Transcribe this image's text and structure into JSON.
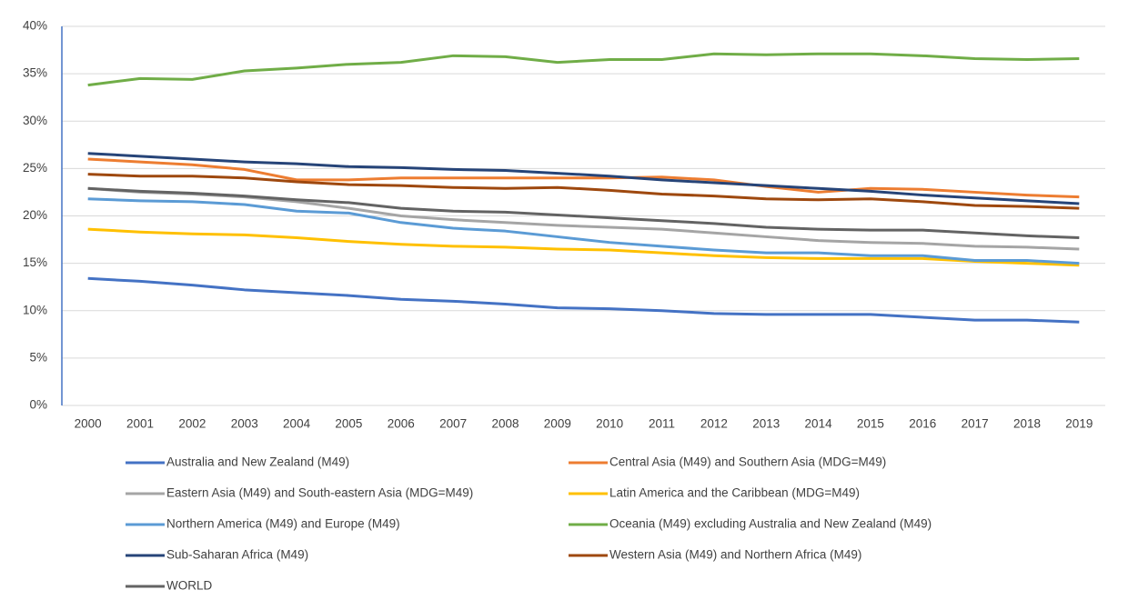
{
  "chart_data": {
    "type": "line",
    "categories": [
      "2000",
      "2001",
      "2002",
      "2003",
      "2004",
      "2005",
      "2006",
      "2007",
      "2008",
      "2009",
      "2010",
      "2011",
      "2012",
      "2013",
      "2014",
      "2015",
      "2016",
      "2017",
      "2018",
      "2019"
    ],
    "ylim": [
      0,
      40
    ],
    "yticks": [
      {
        "value": 0,
        "label": "0%"
      },
      {
        "value": 5,
        "label": "5%"
      },
      {
        "value": 10,
        "label": "10%"
      },
      {
        "value": 15,
        "label": "15%"
      },
      {
        "value": 20,
        "label": "20%"
      },
      {
        "value": 25,
        "label": "25%"
      },
      {
        "value": 30,
        "label": "30%"
      },
      {
        "value": 35,
        "label": "35%"
      },
      {
        "value": 40,
        "label": "40%"
      }
    ],
    "grid": true,
    "legend": "bottom",
    "series": [
      {
        "name": "Australia and New Zealand (M49)",
        "color": "#4472c4",
        "values": [
          13.4,
          13.1,
          12.7,
          12.2,
          11.9,
          11.6,
          11.2,
          11.0,
          10.7,
          10.3,
          10.2,
          10.0,
          9.7,
          9.6,
          9.6,
          9.6,
          9.3,
          9.0,
          9.0,
          8.8
        ]
      },
      {
        "name": "Central Asia (M49) and Southern Asia (MDG=M49)",
        "color": "#ed7d31",
        "values": [
          26.0,
          25.7,
          25.4,
          24.9,
          23.8,
          23.8,
          24.0,
          24.0,
          24.0,
          24.0,
          24.0,
          24.1,
          23.8,
          23.1,
          22.5,
          22.9,
          22.8,
          22.5,
          22.2,
          22.0
        ]
      },
      {
        "name": "Eastern Asia (M49) and South-eastern Asia (MDG=M49)",
        "color": "#a5a5a5",
        "values": [
          22.9,
          22.5,
          22.3,
          22.0,
          21.5,
          20.8,
          20.0,
          19.6,
          19.3,
          19.0,
          18.8,
          18.6,
          18.2,
          17.8,
          17.4,
          17.2,
          17.1,
          16.8,
          16.7,
          16.5
        ]
      },
      {
        "name": "Latin America and the Caribbean (MDG=M49)",
        "color": "#ffc000",
        "values": [
          18.6,
          18.3,
          18.1,
          18.0,
          17.7,
          17.3,
          17.0,
          16.8,
          16.7,
          16.5,
          16.4,
          16.1,
          15.8,
          15.6,
          15.5,
          15.5,
          15.5,
          15.2,
          15.0,
          14.8
        ]
      },
      {
        "name": "Northern America (M49) and Europe (M49)",
        "color": "#5b9bd5",
        "values": [
          21.8,
          21.6,
          21.5,
          21.2,
          20.5,
          20.3,
          19.3,
          18.7,
          18.4,
          17.8,
          17.2,
          16.8,
          16.4,
          16.1,
          16.1,
          15.8,
          15.8,
          15.3,
          15.3,
          15.0
        ]
      },
      {
        "name": "Oceania (M49) excluding Australia and New Zealand (M49)",
        "color": "#70ad47",
        "values": [
          33.8,
          34.5,
          34.4,
          35.3,
          35.6,
          36.0,
          36.2,
          36.9,
          36.8,
          36.2,
          36.5,
          36.5,
          37.1,
          37.0,
          37.1,
          37.1,
          36.9,
          36.6,
          36.5,
          36.6
        ]
      },
      {
        "name": "Sub-Saharan Africa (M49)",
        "color": "#264478",
        "values": [
          26.6,
          26.3,
          26.0,
          25.7,
          25.5,
          25.2,
          25.1,
          24.9,
          24.8,
          24.5,
          24.2,
          23.8,
          23.5,
          23.2,
          22.9,
          22.6,
          22.2,
          21.9,
          21.6,
          21.3
        ]
      },
      {
        "name": "Western Asia (M49) and Northern Africa (M49)",
        "color": "#9e480e",
        "values": [
          24.4,
          24.2,
          24.2,
          24.0,
          23.6,
          23.3,
          23.2,
          23.0,
          22.9,
          23.0,
          22.7,
          22.3,
          22.1,
          21.8,
          21.7,
          21.8,
          21.5,
          21.1,
          21.0,
          20.8
        ]
      },
      {
        "name": "WORLD",
        "color": "#636363",
        "values": [
          22.9,
          22.6,
          22.4,
          22.1,
          21.7,
          21.4,
          20.8,
          20.5,
          20.4,
          20.1,
          19.8,
          19.5,
          19.2,
          18.8,
          18.6,
          18.5,
          18.5,
          18.2,
          17.9,
          17.7
        ]
      }
    ]
  }
}
